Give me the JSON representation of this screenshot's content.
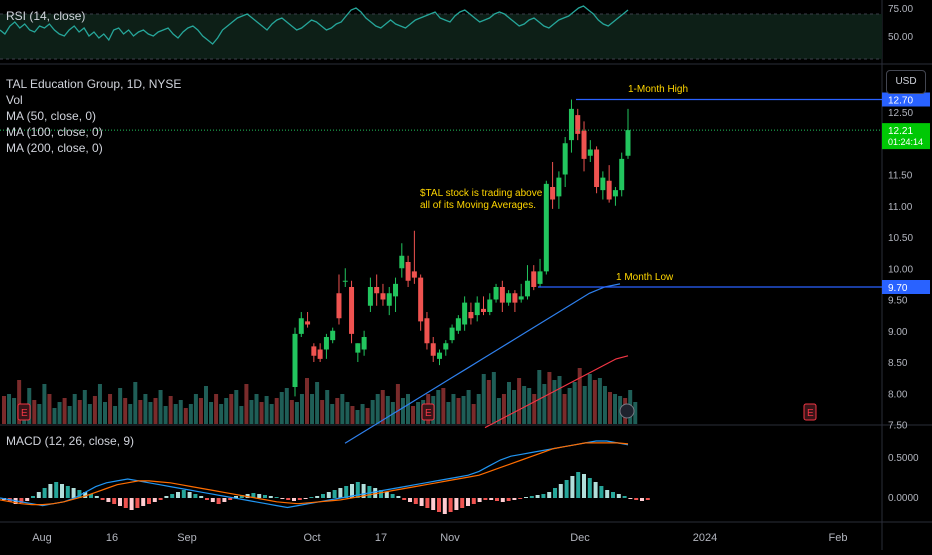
{
  "header": {
    "symbol_line": "TAL Education Group, 1D, NYSE",
    "vol_label": "Vol",
    "ma50_label": "MA (50, close, 0)",
    "ma100_label": "MA (100, close, 0)",
    "ma200_label": "MA (200, close, 0)",
    "currency_button": "USD"
  },
  "rsi_panel": {
    "label": "RSI (14, close)",
    "ticks": [
      "75.00",
      "50.00"
    ]
  },
  "macd_panel": {
    "label": "MACD (12, 26, close, 9)",
    "ticks": [
      "0.5000",
      "0.0000"
    ]
  },
  "annotations": {
    "high_label": "1-Month High",
    "low_label": "1 Month Low",
    "note_line1": "$TAL stock is trading above",
    "note_line2": "all of its Moving Averages."
  },
  "price_badges": {
    "high_value": "12.70",
    "low_value": "9.70",
    "last_price": "12.21",
    "countdown": "01:24:14"
  },
  "colors": {
    "up": "#26a69a",
    "candle_up": "#22c55e",
    "candle_down": "#ef5350",
    "ma50": "#2f80ed",
    "ma100": "#f23645",
    "macd": "#2196f3",
    "signal": "#ff6d00",
    "level_line": "#2962ff",
    "annotation_text": "#ffd600",
    "last_price_badge": "#00c805"
  },
  "chart_data": {
    "type": "candlestick",
    "price_axis_ticks": [
      "12.50",
      "11.50",
      "11.00",
      "10.50",
      "10.00",
      "9.50",
      "9.00",
      "8.50",
      "8.00",
      "7.50"
    ],
    "x_axis_labels": [
      "Aug",
      "16",
      "Sep",
      "Oct",
      "17",
      "Nov",
      "Dec",
      "2024",
      "Feb"
    ],
    "candles": [
      {
        "date": "Oct 2",
        "o": 8.1,
        "h": 9.05,
        "l": 7.95,
        "c": 8.95
      },
      {
        "date": "Oct 3",
        "o": 8.95,
        "h": 9.3,
        "l": 8.9,
        "c": 9.2
      },
      {
        "date": "Oct 4",
        "o": 9.15,
        "h": 9.3,
        "l": 9.05,
        "c": 9.1
      },
      {
        "date": "Oct 5",
        "o": 8.75,
        "h": 8.8,
        "l": 8.5,
        "c": 8.6
      },
      {
        "date": "Oct 6",
        "o": 8.7,
        "h": 8.8,
        "l": 8.5,
        "c": 8.55
      },
      {
        "date": "Oct 9",
        "o": 8.7,
        "h": 8.95,
        "l": 8.55,
        "c": 8.9
      },
      {
        "date": "Oct 10",
        "o": 8.85,
        "h": 9.05,
        "l": 8.8,
        "c": 9.0
      },
      {
        "date": "Oct 11",
        "o": 9.6,
        "h": 9.9,
        "l": 9.1,
        "c": 9.2
      },
      {
        "date": "Oct 12",
        "o": 9.8,
        "h": 10.0,
        "l": 9.7,
        "c": 9.8
      },
      {
        "date": "Oct 13",
        "o": 9.7,
        "h": 9.8,
        "l": 8.8,
        "c": 8.95
      },
      {
        "date": "Oct 16",
        "o": 8.65,
        "h": 8.8,
        "l": 8.5,
        "c": 8.8
      },
      {
        "date": "Oct 17",
        "o": 8.7,
        "h": 9.0,
        "l": 8.6,
        "c": 8.9
      },
      {
        "date": "Oct 18",
        "o": 9.4,
        "h": 9.85,
        "l": 9.3,
        "c": 9.7
      },
      {
        "date": "Oct 19",
        "o": 9.7,
        "h": 9.9,
        "l": 9.4,
        "c": 9.6
      },
      {
        "date": "Oct 20",
        "o": 9.6,
        "h": 9.75,
        "l": 9.4,
        "c": 9.5
      },
      {
        "date": "Oct 23",
        "o": 9.4,
        "h": 9.7,
        "l": 9.25,
        "c": 9.6
      },
      {
        "date": "Oct 24",
        "o": 9.55,
        "h": 9.85,
        "l": 9.3,
        "c": 9.75
      },
      {
        "date": "Oct 25",
        "o": 10.0,
        "h": 10.4,
        "l": 9.85,
        "c": 10.2
      },
      {
        "date": "Oct 26",
        "o": 10.1,
        "h": 10.2,
        "l": 9.7,
        "c": 9.8
      },
      {
        "date": "Oct 27",
        "o": 9.95,
        "h": 10.6,
        "l": 9.75,
        "c": 9.85
      },
      {
        "date": "Oct 30",
        "o": 9.85,
        "h": 9.9,
        "l": 9.0,
        "c": 9.15
      },
      {
        "date": "Oct 31",
        "o": 9.2,
        "h": 9.3,
        "l": 8.7,
        "c": 8.8
      },
      {
        "date": "Nov 1",
        "o": 8.8,
        "h": 8.9,
        "l": 8.5,
        "c": 8.6
      },
      {
        "date": "Nov 2",
        "o": 8.55,
        "h": 8.7,
        "l": 8.45,
        "c": 8.65
      },
      {
        "date": "Nov 3",
        "o": 8.7,
        "h": 8.85,
        "l": 8.6,
        "c": 8.8
      },
      {
        "date": "Nov 6",
        "o": 8.85,
        "h": 9.1,
        "l": 8.8,
        "c": 9.05
      },
      {
        "date": "Nov 7",
        "o": 9.0,
        "h": 9.25,
        "l": 8.95,
        "c": 9.2
      },
      {
        "date": "Nov 8",
        "o": 9.1,
        "h": 9.55,
        "l": 9.0,
        "c": 9.45
      },
      {
        "date": "Nov 9",
        "o": 9.3,
        "h": 9.45,
        "l": 9.1,
        "c": 9.2
      },
      {
        "date": "Nov 10",
        "o": 9.25,
        "h": 9.55,
        "l": 9.15,
        "c": 9.45
      },
      {
        "date": "Nov 13",
        "o": 9.35,
        "h": 9.55,
        "l": 9.25,
        "c": 9.3
      },
      {
        "date": "Nov 14",
        "o": 9.3,
        "h": 9.6,
        "l": 9.25,
        "c": 9.5
      },
      {
        "date": "Nov 15",
        "o": 9.5,
        "h": 9.75,
        "l": 9.45,
        "c": 9.7
      },
      {
        "date": "Nov 16",
        "o": 9.7,
        "h": 9.8,
        "l": 9.3,
        "c": 9.45
      },
      {
        "date": "Nov 17",
        "o": 9.45,
        "h": 9.65,
        "l": 9.4,
        "c": 9.6
      },
      {
        "date": "Nov 20",
        "o": 9.6,
        "h": 9.65,
        "l": 9.3,
        "c": 9.45
      },
      {
        "date": "Nov 21",
        "o": 9.5,
        "h": 9.75,
        "l": 9.45,
        "c": 9.55
      },
      {
        "date": "Nov 22",
        "o": 9.55,
        "h": 10.05,
        "l": 9.5,
        "c": 9.8
      },
      {
        "date": "Nov 24",
        "o": 9.95,
        "h": 10.05,
        "l": 9.65,
        "c": 9.7
      },
      {
        "date": "Nov 27",
        "o": 9.75,
        "h": 10.15,
        "l": 9.7,
        "c": 9.95
      },
      {
        "date": "Nov 28",
        "o": 9.95,
        "h": 11.4,
        "l": 9.9,
        "c": 11.35
      },
      {
        "date": "Nov 29",
        "o": 11.3,
        "h": 11.7,
        "l": 10.95,
        "c": 11.1
      },
      {
        "date": "Nov 30",
        "o": 11.15,
        "h": 11.55,
        "l": 10.95,
        "c": 11.45
      },
      {
        "date": "Dec 1",
        "o": 11.5,
        "h": 12.1,
        "l": 11.3,
        "c": 12.0
      },
      {
        "date": "Dec 4",
        "o": 12.05,
        "h": 12.7,
        "l": 11.85,
        "c": 12.55
      },
      {
        "date": "Dec 5",
        "o": 12.45,
        "h": 12.55,
        "l": 12.05,
        "c": 12.15
      },
      {
        "date": "Dec 6",
        "o": 12.2,
        "h": 12.35,
        "l": 11.55,
        "c": 11.75
      },
      {
        "date": "Dec 7",
        "o": 11.8,
        "h": 12.05,
        "l": 11.7,
        "c": 11.9
      },
      {
        "date": "Dec 8",
        "o": 11.9,
        "h": 11.95,
        "l": 11.2,
        "c": 11.3
      },
      {
        "date": "Dec 11",
        "o": 11.25,
        "h": 11.55,
        "l": 11.1,
        "c": 11.45
      },
      {
        "date": "Dec 12",
        "o": 11.4,
        "h": 11.65,
        "l": 11.05,
        "c": 11.1
      },
      {
        "date": "Dec 13",
        "o": 11.15,
        "h": 11.3,
        "l": 11.0,
        "c": 11.25
      },
      {
        "date": "Dec 14",
        "o": 11.25,
        "h": 11.85,
        "l": 11.15,
        "c": 11.75
      },
      {
        "date": "Dec 15",
        "o": 11.8,
        "h": 12.55,
        "l": 11.75,
        "c": 12.21
      }
    ],
    "ma50": [
      7.2,
      7.35,
      7.5,
      7.65,
      7.8,
      7.95,
      8.1,
      8.25,
      8.4,
      8.55,
      8.7,
      8.85,
      9.0,
      9.15,
      9.3,
      9.45,
      9.6,
      9.7,
      9.75
    ],
    "ma100": [
      7.45,
      7.55,
      7.65,
      7.75,
      7.85,
      7.95,
      8.05,
      8.15,
      8.25,
      8.35,
      8.45,
      8.55,
      8.6
    ],
    "high_level": 12.7,
    "low_level": 9.7
  }
}
